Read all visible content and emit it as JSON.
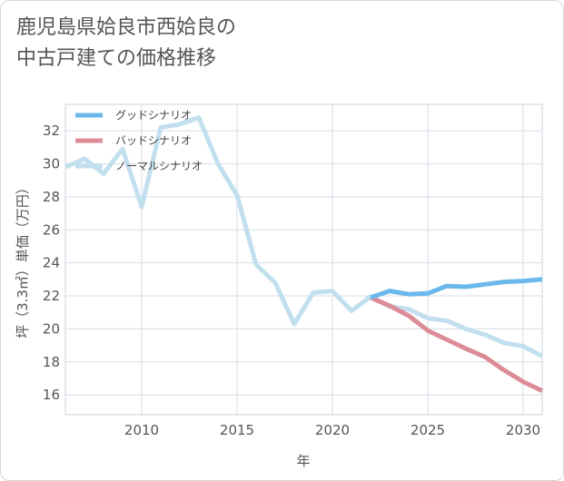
{
  "title_lines": [
    "鹿児島県姶良市西姶良の",
    "中古戸建ての価格推移"
  ],
  "chart_data": {
    "type": "line",
    "title": "鹿児島県姶良市西姶良の中古戸建ての価格推移",
    "xlabel": "年",
    "ylabel": "坪（3.3㎡）単価（万円）",
    "xlim": [
      2006,
      2031
    ],
    "ylim": [
      14.8,
      33.6
    ],
    "xticks": [
      2010,
      2015,
      2020,
      2025,
      2030
    ],
    "yticks": [
      16,
      18,
      20,
      22,
      24,
      26,
      28,
      30,
      32
    ],
    "grid": true,
    "legend_position": "top-left",
    "series": [
      {
        "name": "グッドシナリオ",
        "color": "#6ab8ec",
        "x": [
          2022,
          2023,
          2024,
          2025,
          2026,
          2027,
          2028,
          2029,
          2030,
          2031
        ],
        "y": [
          21.9,
          22.3,
          22.1,
          22.15,
          22.6,
          22.55,
          22.7,
          22.85,
          22.9,
          23.0
        ]
      },
      {
        "name": "バッドシナリオ",
        "color": "#dc8c96",
        "x": [
          2022,
          2023,
          2024,
          2025,
          2026,
          2027,
          2028,
          2029,
          2030,
          2031
        ],
        "y": [
          21.9,
          21.4,
          20.8,
          19.9,
          19.35,
          18.8,
          18.3,
          17.5,
          16.8,
          16.25
        ]
      },
      {
        "name": "ノーマルシナリオ",
        "color": "#c2dfee",
        "x": [
          2006,
          2007,
          2008,
          2009,
          2010,
          2011,
          2012,
          2013,
          2014,
          2015,
          2016,
          2017,
          2018,
          2019,
          2020,
          2021,
          2022,
          2023,
          2024,
          2025,
          2026,
          2027,
          2028,
          2029,
          2030,
          2031
        ],
        "y": [
          29.8,
          30.3,
          29.4,
          30.9,
          27.4,
          32.2,
          32.4,
          32.8,
          30.0,
          28.1,
          23.9,
          22.8,
          20.3,
          22.2,
          22.3,
          21.1,
          21.95,
          21.35,
          21.2,
          20.65,
          20.5,
          20.0,
          19.65,
          19.15,
          18.95,
          18.35
        ]
      }
    ]
  }
}
